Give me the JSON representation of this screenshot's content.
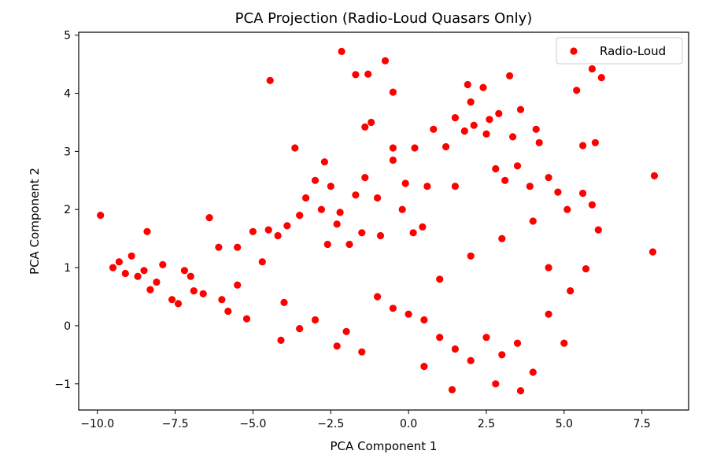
{
  "chart_data": {
    "type": "scatter",
    "title": "PCA Projection (Radio-Loud Quasars Only)",
    "xlabel": "PCA Component 1",
    "ylabel": "PCA Component 2",
    "xlim": [
      -10.6,
      9.0
    ],
    "ylim": [
      -1.45,
      5.05
    ],
    "xticks": [
      -10.0,
      -7.5,
      -5.0,
      -2.5,
      0.0,
      2.5,
      5.0,
      7.5
    ],
    "xtick_labels": [
      "−10.0",
      "−7.5",
      "−5.0",
      "−2.5",
      "0.0",
      "2.5",
      "5.0",
      "7.5"
    ],
    "yticks": [
      -1,
      0,
      1,
      2,
      3,
      4,
      5
    ],
    "ytick_labels": [
      "−1",
      "0",
      "1",
      "2",
      "3",
      "4",
      "5"
    ],
    "grid": false,
    "legend": {
      "placement": "top-right",
      "entries": [
        "Radio-Loud"
      ]
    },
    "series": [
      {
        "name": "Radio-Loud",
        "color": "#ff0000",
        "points": [
          [
            -9.9,
            1.9
          ],
          [
            -9.5,
            1.0
          ],
          [
            -9.3,
            1.1
          ],
          [
            -9.1,
            0.9
          ],
          [
            -8.9,
            1.2
          ],
          [
            -8.7,
            0.85
          ],
          [
            -8.5,
            0.95
          ],
          [
            -8.4,
            1.62
          ],
          [
            -8.3,
            0.62
          ],
          [
            -8.1,
            0.75
          ],
          [
            -7.9,
            1.05
          ],
          [
            -7.6,
            0.45
          ],
          [
            -7.4,
            0.38
          ],
          [
            -7.2,
            0.95
          ],
          [
            -6.9,
            0.6
          ],
          [
            -6.6,
            0.55
          ],
          [
            -6.4,
            1.86
          ],
          [
            -6.1,
            1.35
          ],
          [
            -5.8,
            0.25
          ],
          [
            -5.5,
            1.35
          ],
          [
            -5.2,
            0.12
          ],
          [
            -5.0,
            1.62
          ],
          [
            -4.7,
            1.1
          ],
          [
            -4.5,
            1.65
          ],
          [
            -4.45,
            4.22
          ],
          [
            -4.2,
            1.55
          ],
          [
            -3.9,
            1.72
          ],
          [
            -3.65,
            3.06
          ],
          [
            -3.5,
            1.9
          ],
          [
            -3.3,
            2.2
          ],
          [
            -3.0,
            2.5
          ],
          [
            -2.8,
            2.0
          ],
          [
            -2.7,
            2.82
          ],
          [
            -2.6,
            1.4
          ],
          [
            -2.5,
            2.4
          ],
          [
            -2.3,
            1.75
          ],
          [
            -2.2,
            1.95
          ],
          [
            -2.15,
            4.72
          ],
          [
            -1.9,
            1.4
          ],
          [
            -1.7,
            2.25
          ],
          [
            -1.7,
            4.32
          ],
          [
            -1.5,
            1.6
          ],
          [
            -1.4,
            2.55
          ],
          [
            -1.4,
            3.42
          ],
          [
            -1.3,
            4.33
          ],
          [
            -1.2,
            3.5
          ],
          [
            -1.0,
            2.2
          ],
          [
            -0.9,
            1.55
          ],
          [
            -0.75,
            4.56
          ],
          [
            -0.5,
            2.85
          ],
          [
            -0.5,
            3.06
          ],
          [
            -0.5,
            4.02
          ],
          [
            -0.2,
            2.0
          ],
          [
            -0.1,
            2.45
          ],
          [
            0.15,
            1.6
          ],
          [
            0.2,
            3.06
          ],
          [
            0.45,
            1.7
          ],
          [
            0.6,
            2.4
          ],
          [
            0.8,
            3.38
          ],
          [
            1.2,
            3.08
          ],
          [
            1.5,
            3.58
          ],
          [
            1.5,
            2.4
          ],
          [
            1.8,
            3.35
          ],
          [
            1.9,
            4.15
          ],
          [
            2.0,
            3.85
          ],
          [
            2.1,
            3.45
          ],
          [
            2.4,
            4.1
          ],
          [
            2.5,
            3.3
          ],
          [
            2.6,
            3.55
          ],
          [
            2.8,
            2.7
          ],
          [
            2.9,
            3.65
          ],
          [
            3.1,
            2.5
          ],
          [
            3.25,
            4.3
          ],
          [
            3.35,
            3.25
          ],
          [
            3.5,
            2.75
          ],
          [
            3.6,
            3.72
          ],
          [
            3.9,
            2.4
          ],
          [
            4.1,
            3.38
          ],
          [
            4.2,
            3.15
          ],
          [
            4.5,
            2.55
          ],
          [
            4.8,
            2.3
          ],
          [
            5.1,
            2.0
          ],
          [
            5.4,
            4.05
          ],
          [
            5.6,
            3.1
          ],
          [
            5.9,
            4.42
          ],
          [
            6.0,
            3.15
          ],
          [
            6.1,
            1.65
          ],
          [
            6.2,
            4.27
          ],
          [
            5.9,
            2.08
          ],
          [
            5.6,
            2.28
          ],
          [
            5.7,
            0.98
          ],
          [
            5.2,
            0.6
          ],
          [
            5.0,
            -0.3
          ],
          [
            7.9,
            2.58
          ],
          [
            7.85,
            1.27
          ],
          [
            4.5,
            0.2
          ],
          [
            4.0,
            -0.8
          ],
          [
            3.6,
            -1.12
          ],
          [
            2.8,
            -1.0
          ],
          [
            1.4,
            -1.1
          ],
          [
            0.5,
            -0.7
          ],
          [
            -1.5,
            -0.45
          ],
          [
            -2.3,
            -0.35
          ],
          [
            -4.1,
            -0.25
          ],
          [
            -3.5,
            -0.05
          ],
          [
            -6.0,
            0.45
          ],
          [
            -7.0,
            0.85
          ],
          [
            -5.5,
            0.7
          ],
          [
            -4.0,
            0.4
          ],
          [
            -3.0,
            0.1
          ],
          [
            -2.0,
            -0.1
          ],
          [
            -1.0,
            0.5
          ],
          [
            -0.5,
            0.3
          ],
          [
            0.0,
            0.2
          ],
          [
            0.5,
            0.1
          ],
          [
            1.0,
            -0.2
          ],
          [
            1.5,
            -0.4
          ],
          [
            2.0,
            -0.6
          ],
          [
            2.5,
            -0.2
          ],
          [
            3.0,
            -0.5
          ],
          [
            3.5,
            -0.3
          ],
          [
            1.0,
            0.8
          ],
          [
            2.0,
            1.2
          ],
          [
            3.0,
            1.5
          ],
          [
            4.0,
            1.8
          ],
          [
            4.5,
            1.0
          ]
        ]
      }
    ]
  }
}
